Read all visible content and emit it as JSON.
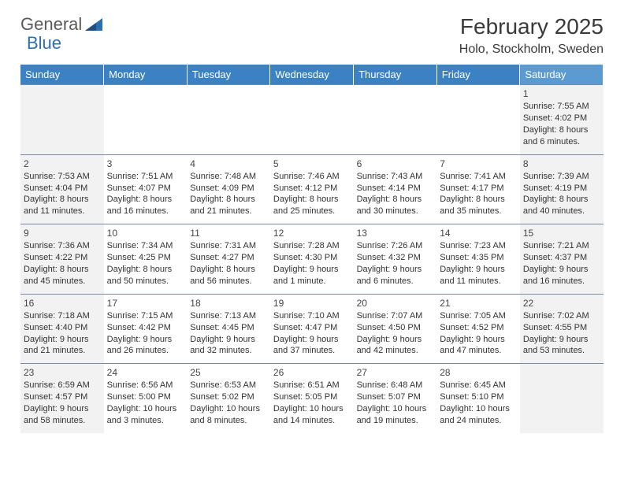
{
  "logo": {
    "word1": "General",
    "word2": "Blue"
  },
  "title": "February 2025",
  "location": "Holo, Stockholm, Sweden",
  "day_headers": [
    "Sunday",
    "Monday",
    "Tuesday",
    "Wednesday",
    "Thursday",
    "Friday",
    "Saturday"
  ],
  "colors": {
    "header_bg": "#3b82c4",
    "header_sat_bg": "#5c9bd1",
    "weekend_cell_bg": "#f2f2f2",
    "cell_border": "#7a8aa0",
    "text": "#333333",
    "logo_gray": "#5a5a5a",
    "logo_blue": "#2e6fb0"
  },
  "weeks": [
    [
      null,
      null,
      null,
      null,
      null,
      null,
      {
        "n": "1",
        "sr": "Sunrise: 7:55 AM",
        "ss": "Sunset: 4:02 PM",
        "dl": "Daylight: 8 hours and 6 minutes."
      }
    ],
    [
      {
        "n": "2",
        "sr": "Sunrise: 7:53 AM",
        "ss": "Sunset: 4:04 PM",
        "dl": "Daylight: 8 hours and 11 minutes."
      },
      {
        "n": "3",
        "sr": "Sunrise: 7:51 AM",
        "ss": "Sunset: 4:07 PM",
        "dl": "Daylight: 8 hours and 16 minutes."
      },
      {
        "n": "4",
        "sr": "Sunrise: 7:48 AM",
        "ss": "Sunset: 4:09 PM",
        "dl": "Daylight: 8 hours and 21 minutes."
      },
      {
        "n": "5",
        "sr": "Sunrise: 7:46 AM",
        "ss": "Sunset: 4:12 PM",
        "dl": "Daylight: 8 hours and 25 minutes."
      },
      {
        "n": "6",
        "sr": "Sunrise: 7:43 AM",
        "ss": "Sunset: 4:14 PM",
        "dl": "Daylight: 8 hours and 30 minutes."
      },
      {
        "n": "7",
        "sr": "Sunrise: 7:41 AM",
        "ss": "Sunset: 4:17 PM",
        "dl": "Daylight: 8 hours and 35 minutes."
      },
      {
        "n": "8",
        "sr": "Sunrise: 7:39 AM",
        "ss": "Sunset: 4:19 PM",
        "dl": "Daylight: 8 hours and 40 minutes."
      }
    ],
    [
      {
        "n": "9",
        "sr": "Sunrise: 7:36 AM",
        "ss": "Sunset: 4:22 PM",
        "dl": "Daylight: 8 hours and 45 minutes."
      },
      {
        "n": "10",
        "sr": "Sunrise: 7:34 AM",
        "ss": "Sunset: 4:25 PM",
        "dl": "Daylight: 8 hours and 50 minutes."
      },
      {
        "n": "11",
        "sr": "Sunrise: 7:31 AM",
        "ss": "Sunset: 4:27 PM",
        "dl": "Daylight: 8 hours and 56 minutes."
      },
      {
        "n": "12",
        "sr": "Sunrise: 7:28 AM",
        "ss": "Sunset: 4:30 PM",
        "dl": "Daylight: 9 hours and 1 minute."
      },
      {
        "n": "13",
        "sr": "Sunrise: 7:26 AM",
        "ss": "Sunset: 4:32 PM",
        "dl": "Daylight: 9 hours and 6 minutes."
      },
      {
        "n": "14",
        "sr": "Sunrise: 7:23 AM",
        "ss": "Sunset: 4:35 PM",
        "dl": "Daylight: 9 hours and 11 minutes."
      },
      {
        "n": "15",
        "sr": "Sunrise: 7:21 AM",
        "ss": "Sunset: 4:37 PM",
        "dl": "Daylight: 9 hours and 16 minutes."
      }
    ],
    [
      {
        "n": "16",
        "sr": "Sunrise: 7:18 AM",
        "ss": "Sunset: 4:40 PM",
        "dl": "Daylight: 9 hours and 21 minutes."
      },
      {
        "n": "17",
        "sr": "Sunrise: 7:15 AM",
        "ss": "Sunset: 4:42 PM",
        "dl": "Daylight: 9 hours and 26 minutes."
      },
      {
        "n": "18",
        "sr": "Sunrise: 7:13 AM",
        "ss": "Sunset: 4:45 PM",
        "dl": "Daylight: 9 hours and 32 minutes."
      },
      {
        "n": "19",
        "sr": "Sunrise: 7:10 AM",
        "ss": "Sunset: 4:47 PM",
        "dl": "Daylight: 9 hours and 37 minutes."
      },
      {
        "n": "20",
        "sr": "Sunrise: 7:07 AM",
        "ss": "Sunset: 4:50 PM",
        "dl": "Daylight: 9 hours and 42 minutes."
      },
      {
        "n": "21",
        "sr": "Sunrise: 7:05 AM",
        "ss": "Sunset: 4:52 PM",
        "dl": "Daylight: 9 hours and 47 minutes."
      },
      {
        "n": "22",
        "sr": "Sunrise: 7:02 AM",
        "ss": "Sunset: 4:55 PM",
        "dl": "Daylight: 9 hours and 53 minutes."
      }
    ],
    [
      {
        "n": "23",
        "sr": "Sunrise: 6:59 AM",
        "ss": "Sunset: 4:57 PM",
        "dl": "Daylight: 9 hours and 58 minutes."
      },
      {
        "n": "24",
        "sr": "Sunrise: 6:56 AM",
        "ss": "Sunset: 5:00 PM",
        "dl": "Daylight: 10 hours and 3 minutes."
      },
      {
        "n": "25",
        "sr": "Sunrise: 6:53 AM",
        "ss": "Sunset: 5:02 PM",
        "dl": "Daylight: 10 hours and 8 minutes."
      },
      {
        "n": "26",
        "sr": "Sunrise: 6:51 AM",
        "ss": "Sunset: 5:05 PM",
        "dl": "Daylight: 10 hours and 14 minutes."
      },
      {
        "n": "27",
        "sr": "Sunrise: 6:48 AM",
        "ss": "Sunset: 5:07 PM",
        "dl": "Daylight: 10 hours and 19 minutes."
      },
      {
        "n": "28",
        "sr": "Sunrise: 6:45 AM",
        "ss": "Sunset: 5:10 PM",
        "dl": "Daylight: 10 hours and 24 minutes."
      },
      null
    ]
  ]
}
